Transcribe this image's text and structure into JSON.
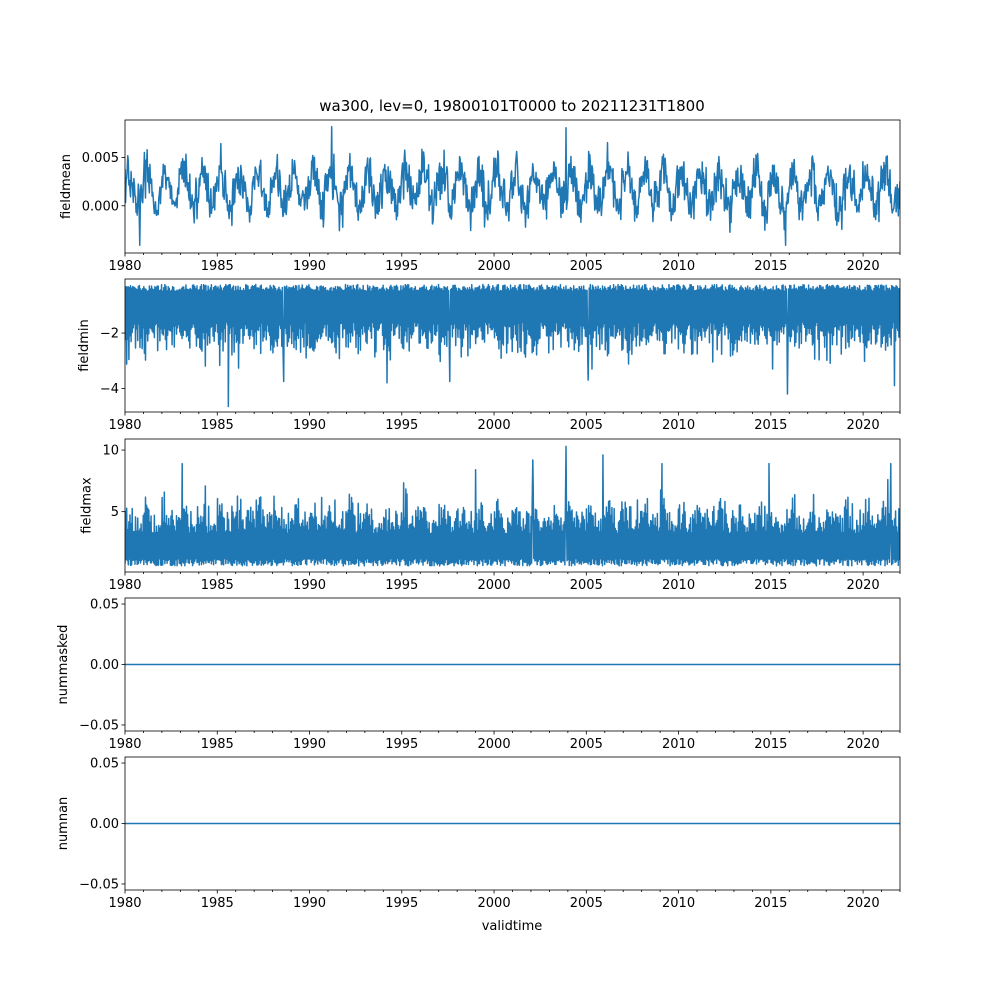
{
  "figure": {
    "title": "wa300, lev=0, 19800101T0000 to 20211231T1800",
    "xlabel": "validtime"
  },
  "colors": {
    "series": "#1f77b4",
    "axes": "#000000",
    "background": "#ffffff"
  },
  "chart_data": [
    {
      "type": "line",
      "ylabel": "fieldmean",
      "xlim": [
        1980,
        2022
      ],
      "ylim": [
        -0.0049,
        0.0089
      ],
      "yticks": [
        "0.005",
        "0.000"
      ],
      "yticks_values": [
        0.005,
        0.0
      ],
      "xticks": [
        "1980",
        "1985",
        "1990",
        "1995",
        "2000",
        "2005",
        "2010",
        "2015",
        "2020"
      ],
      "grid": false,
      "series": [
        {
          "approx_baseline": 0.0017,
          "approx_seasonal_amplitude": 0.0022,
          "observed_min": -0.0041,
          "observed_max": 0.0083,
          "spikes": [
            {
              "x": 1980.8,
              "y": -0.0041
            },
            {
              "x": 1991.2,
              "y": 0.0082
            },
            {
              "x": 2003.9,
              "y": 0.0081
            },
            {
              "x": 2015.8,
              "y": -0.0041
            }
          ]
        }
      ]
    },
    {
      "type": "line",
      "ylabel": "fieldmin",
      "xlim": [
        1980,
        2022
      ],
      "ylim": [
        -4.85,
        -0.05
      ],
      "yticks": [
        "−2",
        "−4"
      ],
      "yticks_values": [
        -2,
        -4
      ],
      "xticks": [
        "1980",
        "1985",
        "1990",
        "1995",
        "2000",
        "2005",
        "2010",
        "2015",
        "2020"
      ],
      "grid": false,
      "series": [
        {
          "approx_baseline": -1.3,
          "observed_max": -0.2,
          "observed_min": -4.65,
          "spikes": [
            {
              "x": 1985.6,
              "y": -4.65
            },
            {
              "x": 1988.6,
              "y": -3.75
            },
            {
              "x": 1994.2,
              "y": -3.8
            },
            {
              "x": 1997.6,
              "y": -3.75
            },
            {
              "x": 2005.1,
              "y": -3.7
            },
            {
              "x": 2015.9,
              "y": -4.2
            },
            {
              "x": 2021.7,
              "y": -3.9
            }
          ]
        }
      ]
    },
    {
      "type": "line",
      "ylabel": "fieldmax",
      "xlim": [
        1980,
        2022
      ],
      "ylim": [
        0.1,
        10.9
      ],
      "yticks": [
        "10",
        "5"
      ],
      "yticks_values": [
        10,
        5
      ],
      "xticks": [
        "1980",
        "1985",
        "1990",
        "1995",
        "2000",
        "2005",
        "2010",
        "2015",
        "2020"
      ],
      "grid": false,
      "series": [
        {
          "approx_baseline": 3.0,
          "observed_min": 0.5,
          "observed_max": 10.3,
          "spikes": [
            {
              "x": 1983.1,
              "y": 8.9
            },
            {
              "x": 1999.0,
              "y": 8.4
            },
            {
              "x": 2002.1,
              "y": 9.2
            },
            {
              "x": 2003.9,
              "y": 10.3
            },
            {
              "x": 2005.9,
              "y": 9.6
            },
            {
              "x": 2009.1,
              "y": 8.9
            },
            {
              "x": 2014.9,
              "y": 8.9
            },
            {
              "x": 2021.5,
              "y": 8.9
            }
          ]
        }
      ]
    },
    {
      "type": "line",
      "ylabel": "nummasked",
      "xlim": [
        1980,
        2022
      ],
      "ylim": [
        -0.055,
        0.055
      ],
      "yticks": [
        "0.05",
        "0.00",
        "−0.05"
      ],
      "yticks_values": [
        0.05,
        0.0,
        -0.05
      ],
      "xticks": [
        "1980",
        "1985",
        "1990",
        "1995",
        "2000",
        "2005",
        "2010",
        "2015",
        "2020"
      ],
      "grid": false,
      "series": [
        {
          "x": [
            1980,
            2022
          ],
          "y": [
            0,
            0
          ]
        }
      ]
    },
    {
      "type": "line",
      "ylabel": "numnan",
      "xlim": [
        1980,
        2022
      ],
      "ylim": [
        -0.055,
        0.055
      ],
      "yticks": [
        "0.05",
        "0.00",
        "−0.05"
      ],
      "yticks_values": [
        0.05,
        0.0,
        -0.05
      ],
      "xticks": [
        "1980",
        "1985",
        "1990",
        "1995",
        "2000",
        "2005",
        "2010",
        "2015",
        "2020"
      ],
      "grid": false,
      "series": [
        {
          "x": [
            1980,
            2022
          ],
          "y": [
            0,
            0
          ]
        }
      ]
    }
  ]
}
